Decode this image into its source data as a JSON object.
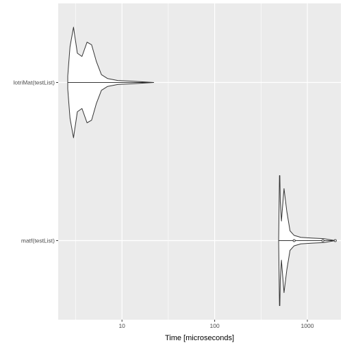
{
  "chart_data": {
    "type": "violin",
    "orientation": "horizontal",
    "xlabel": "Time [microseconds]",
    "ylabel": "",
    "x_scale": "log10",
    "xlim": [
      2.05,
      2300
    ],
    "x_ticks": [
      10,
      100,
      1000
    ],
    "x_tick_labels": [
      "10",
      "100",
      "1000"
    ],
    "grid": true,
    "legend": "none",
    "colors": {
      "panel": "#ebebeb",
      "grid": "#ffffff",
      "outline": "#333333",
      "text": "#4d4d4d"
    },
    "categories": [
      "lotriMat(testList)",
      "matf(testList)"
    ],
    "series": [
      {
        "category": "lotriMat(testList)",
        "min": 2.6,
        "max": 22,
        "profile": [
          [
            2.6,
            0.1
          ],
          [
            2.75,
            0.55
          ],
          [
            3.0,
            0.85
          ],
          [
            3.3,
            0.45
          ],
          [
            3.7,
            0.4
          ],
          [
            4.2,
            0.62
          ],
          [
            4.7,
            0.58
          ],
          [
            5.3,
            0.32
          ],
          [
            6.0,
            0.12
          ],
          [
            7.0,
            0.06
          ],
          [
            9.0,
            0.03
          ],
          [
            13.0,
            0.02
          ],
          [
            22.0,
            0.0
          ]
        ],
        "outliers": []
      },
      {
        "category": "matf(testList)",
        "min": 490,
        "max": 2000,
        "profile": [
          [
            490,
            0.01
          ],
          [
            495,
            0.5
          ],
          [
            500,
            1.0
          ],
          [
            505,
            1.0
          ],
          [
            510,
            0.6
          ],
          [
            525,
            0.3
          ],
          [
            560,
            0.8
          ],
          [
            600,
            0.45
          ],
          [
            650,
            0.15
          ],
          [
            720,
            0.08
          ],
          [
            850,
            0.05
          ],
          [
            1100,
            0.04
          ],
          [
            1500,
            0.03
          ],
          [
            2000,
            0.0
          ]
        ],
        "outliers": [
          720,
          1470,
          2000
        ]
      }
    ]
  }
}
